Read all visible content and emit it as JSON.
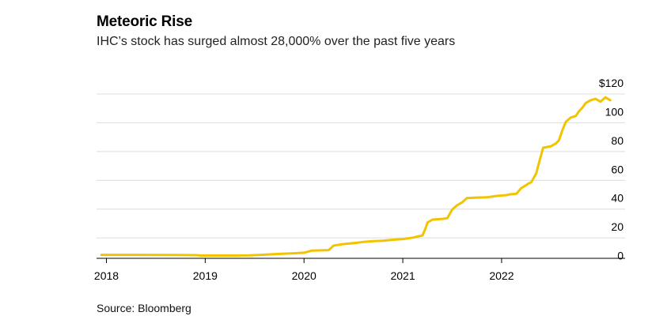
{
  "chart_data": {
    "type": "line",
    "title": "Meteoric Rise",
    "subtitle": "IHC’s stock has surged almost 28,000% over the past five years",
    "source": "Source: Bloomberg",
    "xlabel": "",
    "ylabel": "",
    "xlim": [
      2017.9,
      2023.25
    ],
    "ylim": [
      -3,
      120
    ],
    "y_ticks": [
      {
        "value": 120,
        "label": "$120"
      },
      {
        "value": 100,
        "label": "100"
      },
      {
        "value": 80,
        "label": "80"
      },
      {
        "value": 60,
        "label": "60"
      },
      {
        "value": 40,
        "label": "40"
      },
      {
        "value": 20,
        "label": "20"
      },
      {
        "value": 0,
        "label": "0"
      }
    ],
    "x_ticks": [
      {
        "value": 2018,
        "label": "2018"
      },
      {
        "value": 2019,
        "label": "2019"
      },
      {
        "value": 2020,
        "label": "2020"
      },
      {
        "value": 2021,
        "label": "2021"
      },
      {
        "value": 2022,
        "label": "2022"
      }
    ],
    "series": [
      {
        "name": "IHC",
        "color": "#f2c400",
        "x": [
          2017.95,
          2018.3,
          2018.7,
          2018.92,
          2018.95,
          2019.3,
          2019.45,
          2019.6,
          2019.75,
          2019.9,
          2020.0,
          2020.08,
          2020.25,
          2020.3,
          2020.4,
          2020.55,
          2020.6,
          2020.7,
          2020.8,
          2020.9,
          2021.0,
          2021.1,
          2021.2,
          2021.23,
          2021.25,
          2021.3,
          2021.4,
          2021.45,
          2021.5,
          2021.55,
          2021.6,
          2021.65,
          2021.75,
          2021.85,
          2021.95,
          2022.05,
          2022.08,
          2022.15,
          2022.2,
          2022.25,
          2022.27,
          2022.3,
          2022.35,
          2022.38,
          2022.42,
          2022.5,
          2022.55,
          2022.58,
          2022.62,
          2022.65,
          2022.7,
          2022.75,
          2022.78,
          2022.82,
          2022.85,
          2022.9,
          2022.95,
          2023.0,
          2023.05,
          2023.1
        ],
        "values": [
          0.5,
          0.5,
          0.4,
          0.3,
          0,
          0,
          0.2,
          0.6,
          1.2,
          1.6,
          2.0,
          3.5,
          3.8,
          7.0,
          8.0,
          9.0,
          9.5,
          10.0,
          10.3,
          11.0,
          11.5,
          12.5,
          14.0,
          19.0,
          23.0,
          25.0,
          25.5,
          26.0,
          32.0,
          35.0,
          37.0,
          40.0,
          40.3,
          40.5,
          41.5,
          42.0,
          42.5,
          43.0,
          47.0,
          49.0,
          50.0,
          51.0,
          57.0,
          65.0,
          75.0,
          76.0,
          78.0,
          80.0,
          88.0,
          93.0,
          96.0,
          97.0,
          100.0,
          103.0,
          106.0,
          108.0,
          109.0,
          107.0,
          110.0,
          108.0
        ]
      }
    ],
    "grid": true,
    "legend": "none"
  }
}
